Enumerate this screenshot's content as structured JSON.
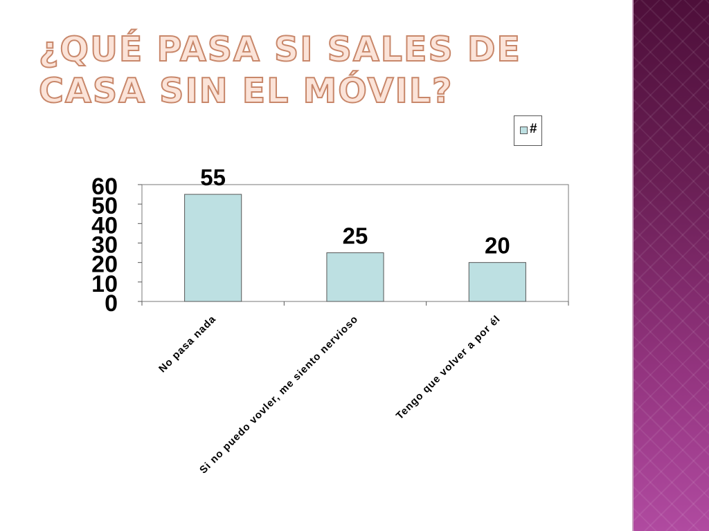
{
  "title": "¿Qué pasa si sales de casa sin el móvil?",
  "chart_data": {
    "type": "bar",
    "categories": [
      "No pasa nada",
      "Si no puedo vovler, me siento nervioso",
      "Tengo que volver a por él"
    ],
    "series": [
      {
        "name": "#",
        "values": [
          55,
          25,
          20
        ]
      }
    ],
    "data_labels": [
      "55",
      "25",
      "20"
    ],
    "ylim": [
      0,
      60
    ],
    "yticks": [
      0,
      10,
      20,
      30,
      40,
      50,
      60
    ],
    "xlabel": "",
    "ylabel": "",
    "grid": false,
    "legend": "top-right",
    "bar_color": "#bde0e2",
    "bar_edge_color": "#555555"
  }
}
